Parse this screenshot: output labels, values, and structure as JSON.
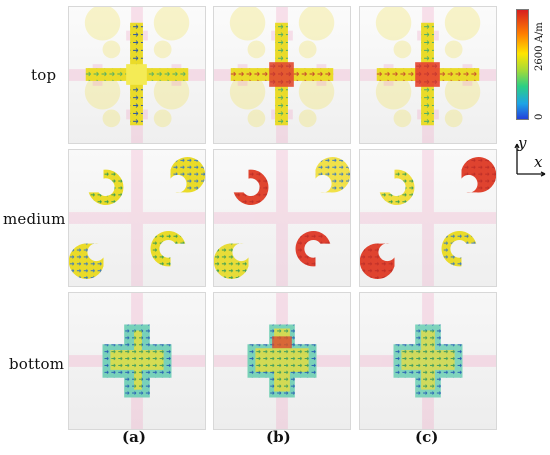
{
  "rows": [
    "top",
    "medium",
    "bottom"
  ],
  "columns": [
    "(a)",
    "(b)",
    "(c)"
  ],
  "colorbar": {
    "max_label": "2600 A/m",
    "min_label": "0",
    "colors": [
      "#d71f1f",
      "#ff7f00",
      "#ffe500",
      "#a7db36",
      "#2ccf84",
      "#1da3e6",
      "#2340da"
    ]
  },
  "axes": {
    "y": "y",
    "x": "x"
  }
}
